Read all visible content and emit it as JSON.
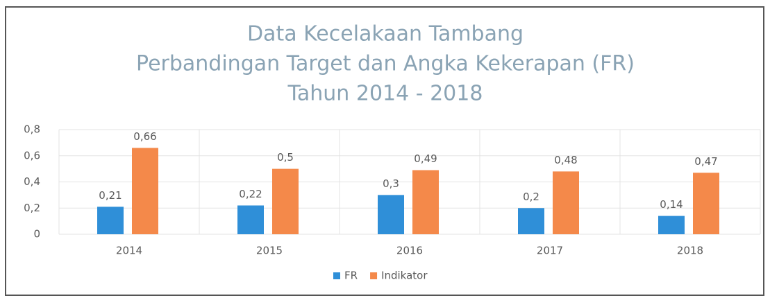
{
  "chart_data": {
    "type": "bar",
    "title": [
      "Data Kecelakaan Tambang",
      "Perbandingan Target dan Angka Kekerapan (FR)",
      "Tahun 2014 -  2018"
    ],
    "categories": [
      "2014",
      "2015",
      "2016",
      "2017",
      "2018"
    ],
    "series": [
      {
        "name": "FR",
        "color": "#2f8fd8",
        "values": [
          0.21,
          0.22,
          0.3,
          0.2,
          0.14
        ],
        "value_labels": [
          "0,21",
          "0,22",
          "0,3",
          "0,2",
          "0,14"
        ]
      },
      {
        "name": "Indikator",
        "color": "#f4894a",
        "values": [
          0.66,
          0.5,
          0.49,
          0.48,
          0.47
        ],
        "value_labels": [
          "0,66",
          "0,5",
          "0,49",
          "0,48",
          "0,47"
        ]
      }
    ],
    "ylim": [
      0,
      0.8
    ],
    "yticks": [
      0,
      {
        "value": 0.2,
        "label": "0,2"
      },
      {
        "value": 0.4,
        "label": "0,4"
      },
      {
        "value": 0.6,
        "label": "0,6"
      },
      {
        "value": 0.8,
        "label": "0,8"
      }
    ],
    "grid": true,
    "legend": "bottom"
  }
}
